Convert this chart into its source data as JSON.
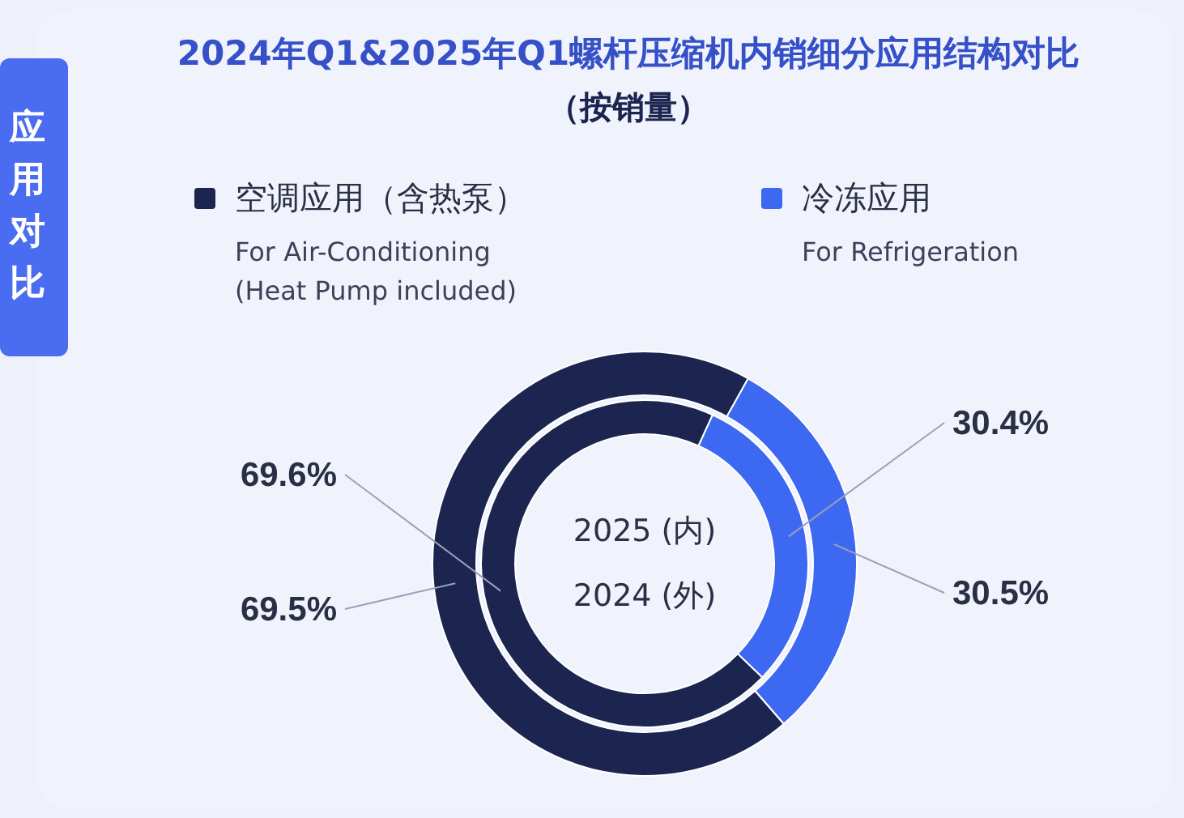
{
  "chart_data": {
    "type": "donut",
    "title": "2024年Q1&2025年Q1螺杆压缩机内销细分应用结构对比",
    "subtitle": "（按销量）",
    "categories": [
      "空调应用（含热泵）\nFor Air-Conditioning\n(Heat Pump included)",
      "冷冻应用\nFor Refrigeration"
    ],
    "colors": [
      "#1c2450",
      "#3d68f2"
    ],
    "series": [
      {
        "values": [
          69.5,
          30.5
        ],
        "value_labels": [
          "69.5%",
          "30.5%"
        ]
      },
      {
        "values": [
          69.6,
          30.4
        ],
        "value_labels": [
          "69.6%",
          "30.4%"
        ]
      }
    ],
    "data_labels": true,
    "legend": "top",
    "annotations": [
      "应用对比",
      "2025 (内)",
      "2024 (外)"
    ]
  }
}
